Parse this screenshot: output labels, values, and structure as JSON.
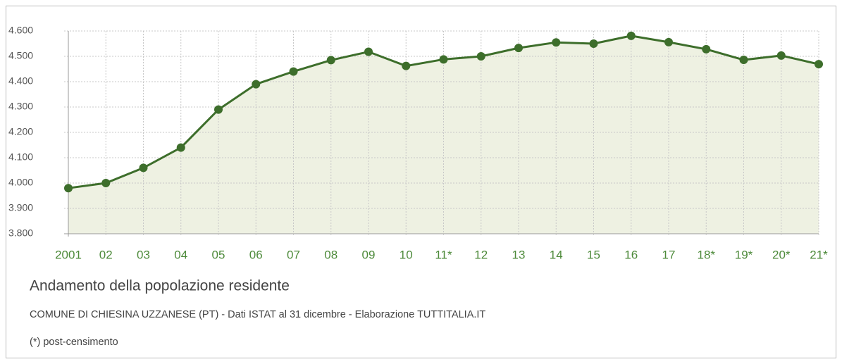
{
  "chart_data": {
    "type": "line",
    "title": "Andamento della popolazione residente",
    "subtitle": "COMUNE DI CHIESINA UZZANESE (PT) - Dati ISTAT al 31 dicembre - Elaborazione TUTTITALIA.IT",
    "note": "(*) post-censimento",
    "categories": [
      "2001",
      "02",
      "03",
      "04",
      "05",
      "06",
      "07",
      "08",
      "09",
      "10",
      "11*",
      "12",
      "13",
      "14",
      "15",
      "16",
      "17",
      "18*",
      "19*",
      "20*",
      "21*"
    ],
    "values": [
      3980,
      4000,
      4060,
      4140,
      4290,
      4390,
      4440,
      4485,
      4518,
      4462,
      4488,
      4500,
      4533,
      4555,
      4550,
      4581,
      4556,
      4528,
      4486,
      4503,
      4469
    ],
    "color": "#3d6e2b",
    "fill": "#eef1e2",
    "ylim": [
      3800,
      4600
    ],
    "yticks": [
      {
        "value": 3800,
        "label": "3.800"
      },
      {
        "value": 3900,
        "label": "3.900"
      },
      {
        "value": 4000,
        "label": "4.000"
      },
      {
        "value": 4100,
        "label": "4.100"
      },
      {
        "value": 4200,
        "label": "4.200"
      },
      {
        "value": 4300,
        "label": "4.300"
      },
      {
        "value": 4400,
        "label": "4.400"
      },
      {
        "value": 4500,
        "label": "4.500"
      },
      {
        "value": 4600,
        "label": "4.600"
      }
    ],
    "grid": true
  }
}
